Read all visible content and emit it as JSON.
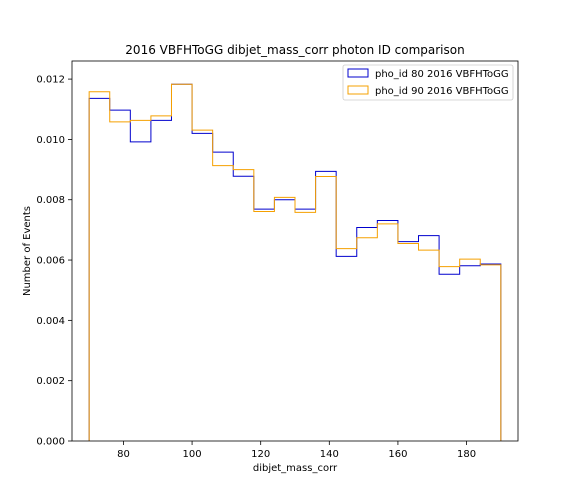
{
  "chart_data": {
    "type": "histogram-step",
    "title": "2016 VBFHToGG dibjet_mass_corr photon ID comparison",
    "xlabel": "dibjet_mass_corr",
    "ylabel": "Number of Events",
    "xlim": [
      65,
      195
    ],
    "ylim": [
      0,
      0.0126
    ],
    "xticks": [
      80,
      100,
      120,
      140,
      160,
      180
    ],
    "xtick_labels": [
      "80",
      "100",
      "120",
      "140",
      "160",
      "180"
    ],
    "yticks": [
      0,
      0.002,
      0.004,
      0.006,
      0.008,
      0.01,
      0.012
    ],
    "ytick_labels": [
      "0.000",
      "0.002",
      "0.004",
      "0.006",
      "0.008",
      "0.010",
      "0.012"
    ],
    "legend_position": "top-right",
    "grid": false,
    "bin_edges": [
      70,
      76,
      82,
      88,
      94,
      100,
      106,
      112,
      118,
      124,
      130,
      136,
      142,
      148,
      154,
      160,
      166,
      172,
      178,
      184,
      190
    ],
    "series": [
      {
        "name": "pho_id 80 2016 VBFHToGG",
        "color": "#0000cd",
        "values": [
          0.01136,
          0.01097,
          0.00992,
          0.01063,
          0.01183,
          0.0102,
          0.00958,
          0.00878,
          0.00769,
          0.008,
          0.00769,
          0.00894,
          0.00612,
          0.00708,
          0.00731,
          0.00661,
          0.00681,
          0.00553,
          0.00581,
          0.00587
        ]
      },
      {
        "name": "pho_id 90 2016 VBFHToGG",
        "color": "#f5a000",
        "values": [
          0.01158,
          0.01058,
          0.01063,
          0.01078,
          0.01183,
          0.01031,
          0.00913,
          0.009,
          0.00761,
          0.00808,
          0.00758,
          0.00877,
          0.00638,
          0.00674,
          0.0072,
          0.00655,
          0.00633,
          0.00578,
          0.00603,
          0.00584
        ]
      }
    ]
  }
}
